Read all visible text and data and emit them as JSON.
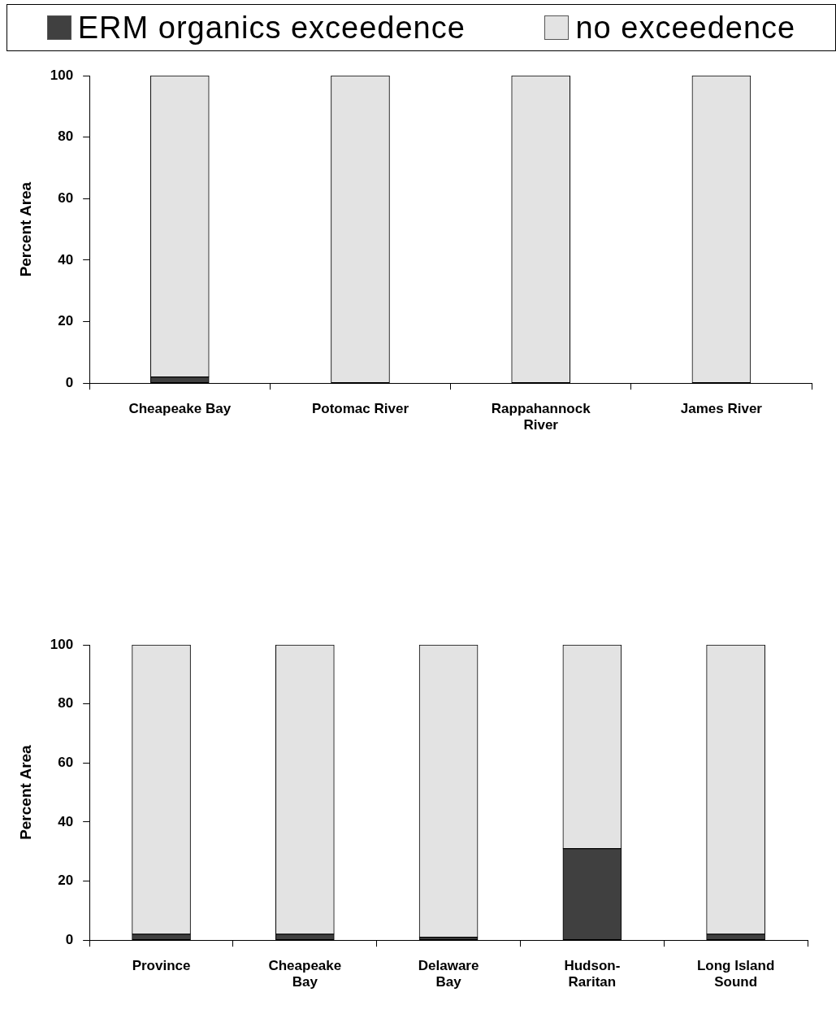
{
  "chart_data": [
    {
      "type": "bar",
      "stacked": true,
      "legend": "top",
      "ylabel": "Percent Area",
      "ylim": [
        0,
        100
      ],
      "yticks": [
        0,
        20,
        40,
        60,
        80,
        100
      ],
      "grid": false,
      "categories": [
        "Cheapeake Bay",
        "Potomac River",
        "Rappahannock River",
        "James River"
      ],
      "series": [
        {
          "name": "ERM organics exceedence",
          "color": "#404040",
          "values": [
            2,
            0,
            0,
            0
          ]
        },
        {
          "name": "no exceedence",
          "color": "#e3e3e3",
          "values": [
            98,
            100,
            100,
            100
          ]
        }
      ]
    },
    {
      "type": "bar",
      "stacked": true,
      "ylabel": "Percent Area",
      "ylim": [
        0,
        100
      ],
      "yticks": [
        0,
        20,
        40,
        60,
        80,
        100
      ],
      "grid": false,
      "categories": [
        "Province",
        "Cheapeake Bay",
        "Delaware Bay",
        "Hudson-Raritan",
        "Long Island Sound"
      ],
      "series": [
        {
          "color": "#404040",
          "values": [
            2,
            2,
            1,
            31,
            2
          ]
        },
        {
          "color": "#e3e3e3",
          "values": [
            98,
            98,
            99,
            69,
            98
          ]
        }
      ]
    }
  ]
}
